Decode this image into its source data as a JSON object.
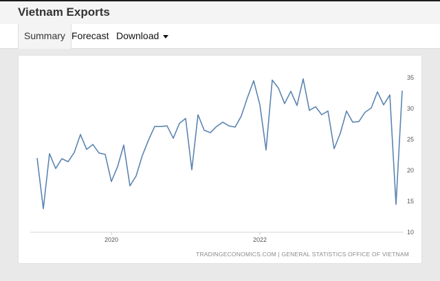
{
  "header": {
    "title": "Vietnam Exports"
  },
  "tabs": [
    {
      "label": "Summary",
      "active": true
    },
    {
      "label": "Forecast",
      "active": false
    },
    {
      "label": "Download",
      "active": false,
      "dropdown": true
    }
  ],
  "chart_data": {
    "type": "line",
    "title": "",
    "xlabel": "",
    "ylabel": "",
    "ylim": [
      10,
      35
    ],
    "y_ticks": [
      10,
      15,
      20,
      25,
      30,
      35
    ],
    "x_ticks": [
      "2020",
      "2022"
    ],
    "grid": false,
    "color": "#5b84b1",
    "series": [
      {
        "values": [
          22.0,
          13.8,
          22.7,
          20.3,
          21.9,
          21.4,
          22.9,
          25.8,
          23.4,
          24.2,
          22.8,
          22.6,
          18.2,
          20.6,
          24.1,
          17.5,
          19.1,
          22.4,
          24.9,
          27.1,
          27.1,
          27.2,
          25.2,
          27.6,
          28.4,
          20.1,
          29.0,
          26.5,
          26.1,
          27.1,
          27.8,
          27.2,
          27.0,
          28.8,
          31.8,
          34.5,
          30.6,
          23.3,
          34.6,
          33.3,
          30.8,
          32.8,
          30.5,
          34.8,
          29.7,
          30.3,
          29.0,
          29.6,
          23.5,
          26.0,
          29.6,
          27.8,
          27.9,
          29.4,
          30.1,
          32.7,
          30.6,
          32.2,
          14.5,
          32.9
        ]
      }
    ]
  },
  "source": "TRADINGECONOMICS.COM | GENERAL STATISTICS OFFICE OF VIETNAM"
}
